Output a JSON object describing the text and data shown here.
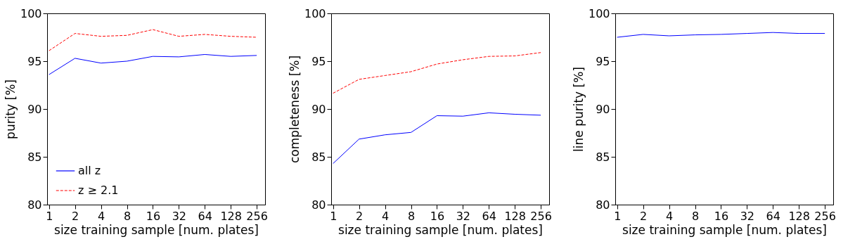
{
  "chart_data": [
    {
      "type": "line",
      "xlabel": "size training sample [num. plates]",
      "ylabel": "purity [%]",
      "log": "x",
      "x": [
        1,
        2,
        4,
        8,
        16,
        32,
        64,
        128,
        256
      ],
      "xlim": [
        0.95,
        320
      ],
      "xticks": [
        1,
        2,
        4,
        8,
        16,
        32,
        64,
        128,
        256
      ],
      "ylim": [
        80,
        100
      ],
      "yticks": [
        80,
        85,
        90,
        95,
        100
      ],
      "grid": false,
      "legend": "bottom left",
      "series": [
        {
          "name": "all z",
          "color": "#0000ff",
          "line_style": "solid",
          "values": [
            93.6,
            95.3,
            94.8,
            95.0,
            95.5,
            95.45,
            95.7,
            95.5,
            95.6
          ]
        },
        {
          "name": "z ≥ 2.1",
          "color": "#ff0000",
          "line_style": "dashed",
          "values": [
            96.1,
            97.9,
            97.6,
            97.7,
            98.3,
            97.6,
            97.8,
            97.6,
            97.5
          ]
        }
      ]
    },
    {
      "type": "line",
      "xlabel": "size training sample [num. plates]",
      "ylabel": "completeness [%]",
      "log": "x",
      "x": [
        1,
        2,
        4,
        8,
        16,
        32,
        64,
        128,
        256
      ],
      "xlim": [
        0.95,
        320
      ],
      "xticks": [
        1,
        2,
        4,
        8,
        16,
        32,
        64,
        128,
        256
      ],
      "ylim": [
        80,
        100
      ],
      "yticks": [
        80,
        85,
        90,
        95,
        100
      ],
      "grid": false,
      "series": [
        {
          "color": "#0000ff",
          "line_style": "solid",
          "values": [
            84.3,
            86.85,
            87.3,
            87.55,
            89.3,
            89.25,
            89.6,
            89.45,
            89.35
          ]
        },
        {
          "color": "#ff0000",
          "line_style": "dashed",
          "values": [
            91.65,
            93.1,
            93.5,
            93.9,
            94.7,
            95.15,
            95.5,
            95.55,
            95.9
          ]
        }
      ]
    },
    {
      "type": "line",
      "xlabel": "size training sample [num. plates]",
      "ylabel": "line purity [%]",
      "log": "x",
      "x": [
        1,
        2,
        4,
        8,
        16,
        32,
        64,
        128,
        256
      ],
      "xlim": [
        0.95,
        320
      ],
      "xticks": [
        1,
        2,
        4,
        8,
        16,
        32,
        64,
        128,
        256
      ],
      "ylim": [
        80,
        100
      ],
      "yticks": [
        80,
        85,
        90,
        95,
        100
      ],
      "grid": false,
      "series": [
        {
          "color": "#0000ff",
          "line_style": "solid",
          "values": [
            97.5,
            97.8,
            97.65,
            97.75,
            97.8,
            97.9,
            98.0,
            97.9,
            97.9
          ]
        }
      ]
    }
  ]
}
